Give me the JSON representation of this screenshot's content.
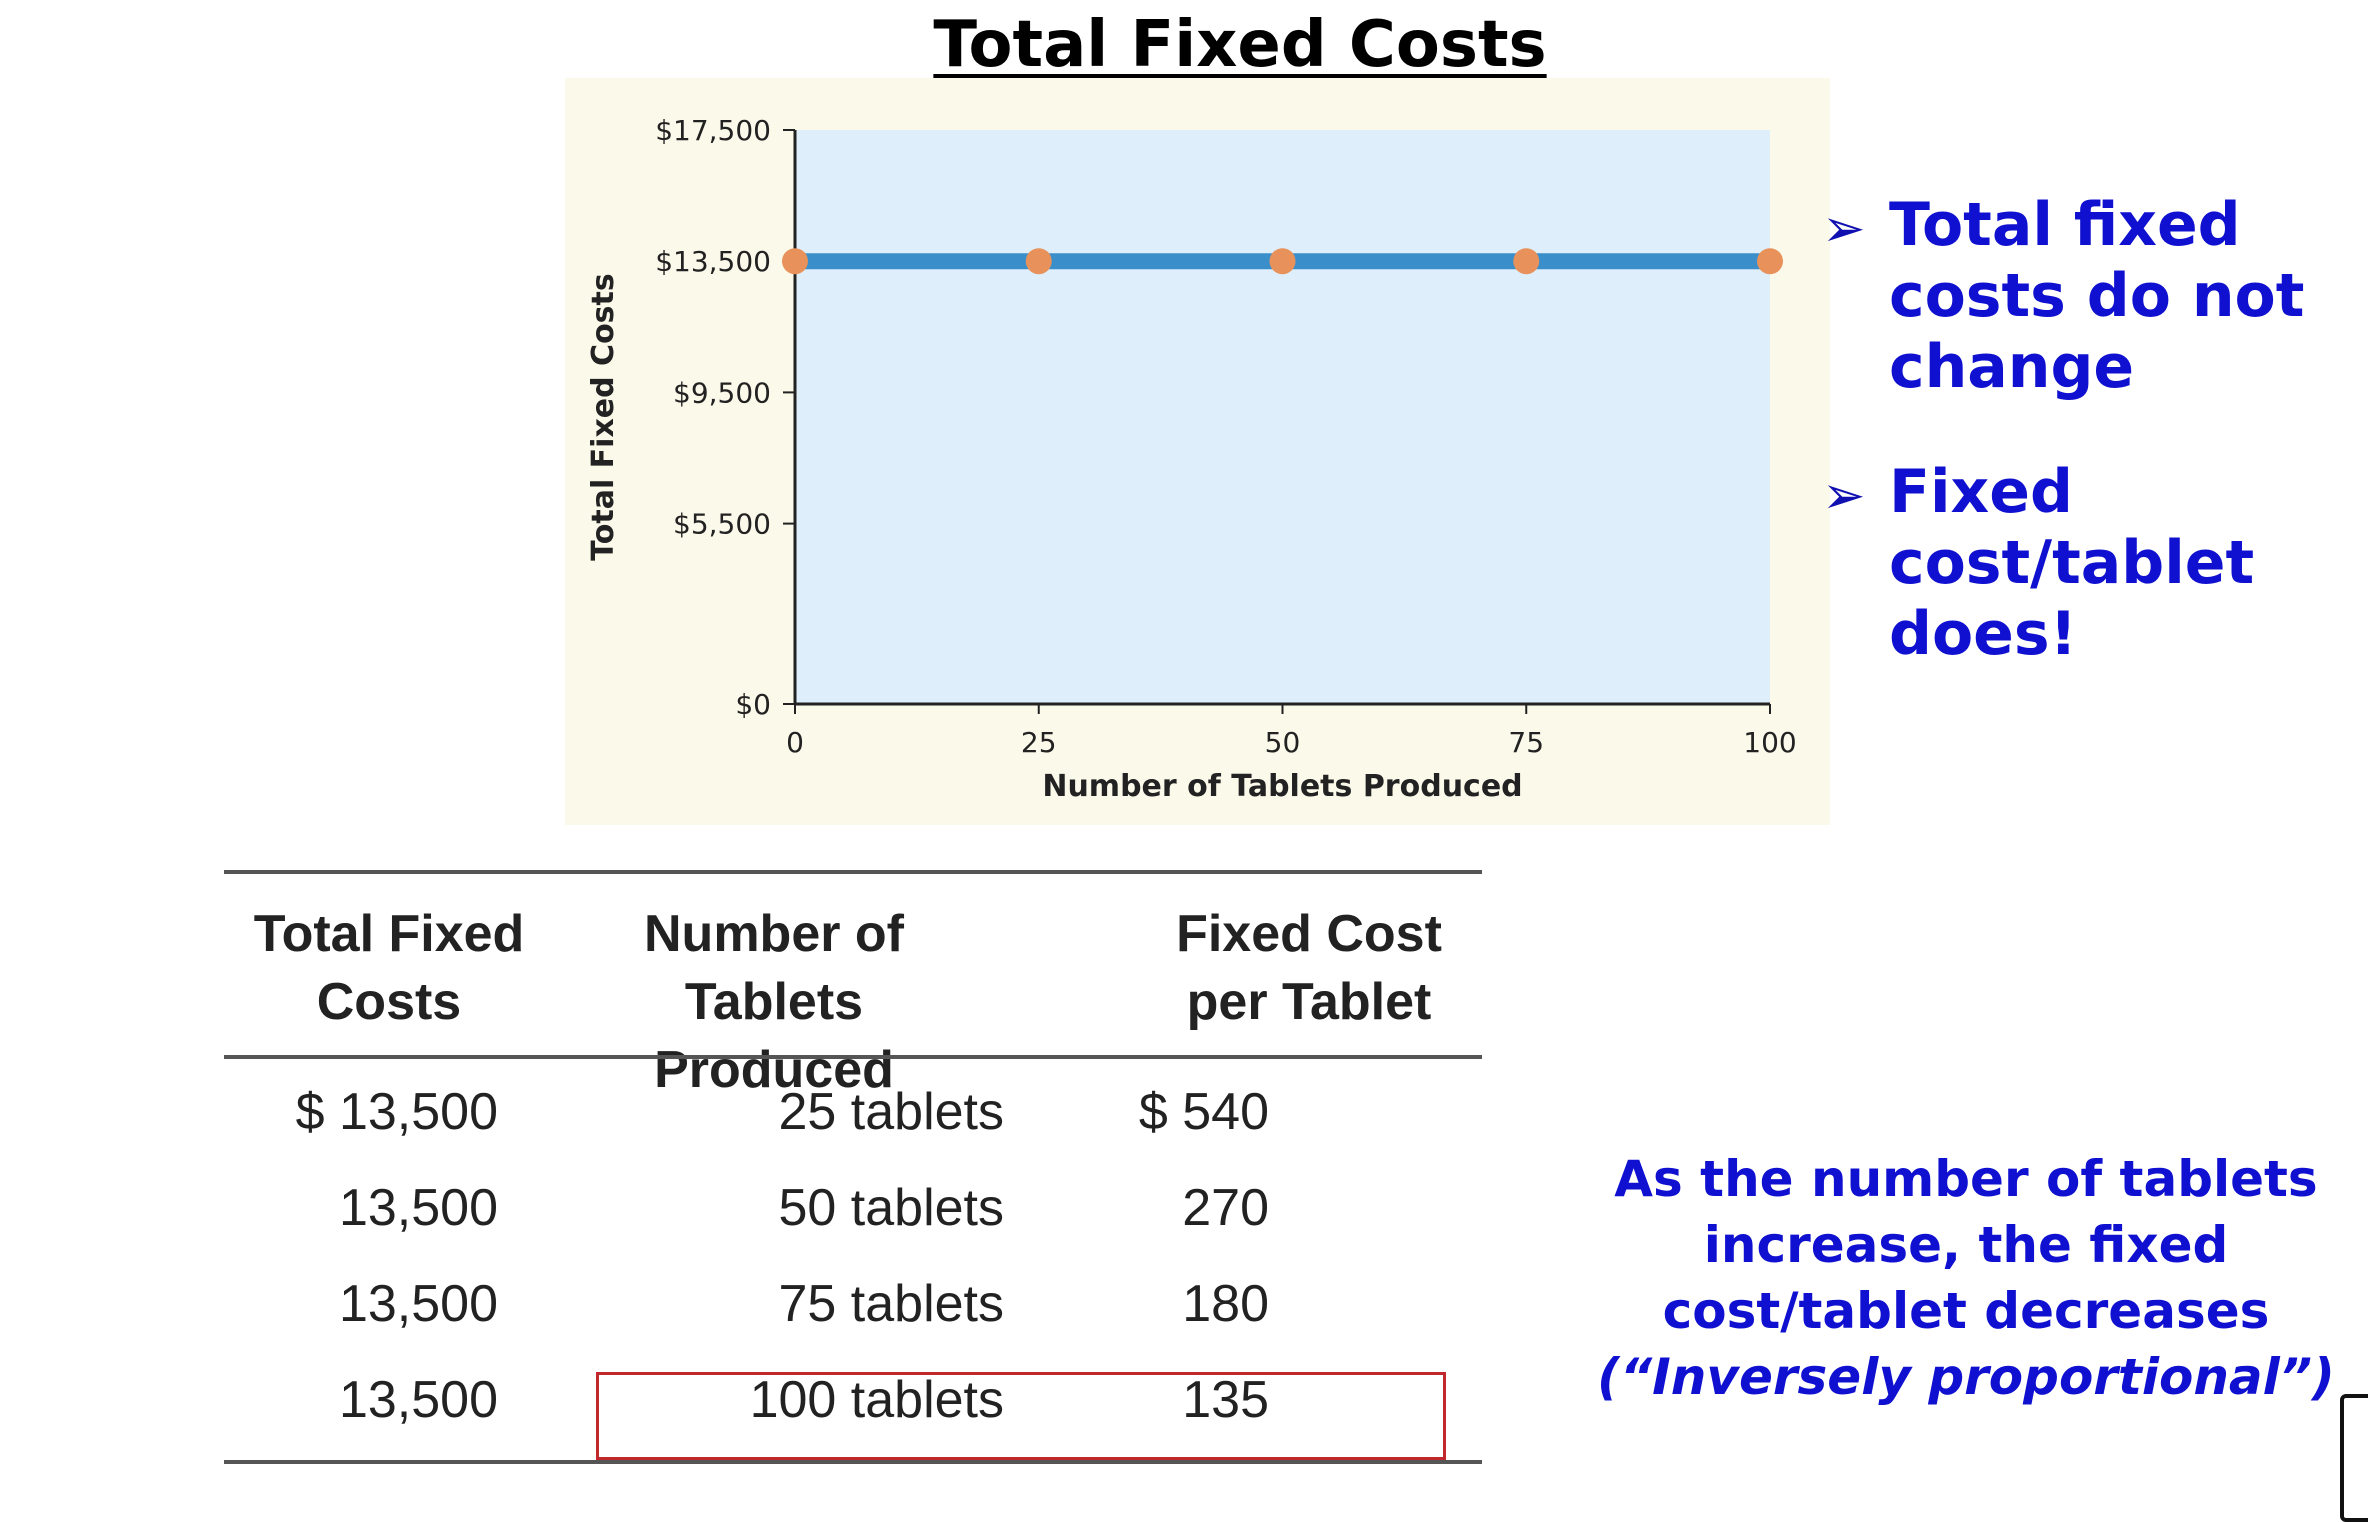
{
  "slide": {
    "title": "Total Fixed Costs"
  },
  "chart_data": {
    "type": "line",
    "title": "",
    "xlabel": "Number of Tablets Produced",
    "ylabel": "Total Fixed Costs",
    "x": [
      0,
      25,
      50,
      75,
      100
    ],
    "series": [
      {
        "values": [
          13500,
          13500,
          13500,
          13500,
          13500
        ]
      }
    ],
    "xlim": [
      0,
      100
    ],
    "ylim": [
      0,
      17500
    ],
    "x_ticks": [
      0,
      25,
      50,
      75,
      100
    ],
    "x_tick_labels": [
      "0",
      "25",
      "50",
      "75",
      "100"
    ],
    "y_ticks": [
      0,
      5500,
      9500,
      13500,
      17500
    ],
    "y_tick_labels": [
      "$0",
      "$5,500",
      "$9,500",
      "$13,500",
      "$17,500"
    ],
    "grid": false,
    "colors": {
      "panel_background": "#fbf9ea",
      "plot_background": "#deeefa",
      "line": "#3a8fcb",
      "marker": "#e8915a",
      "axis": "#222222"
    }
  },
  "bullets": [
    {
      "marker": "➢",
      "text": "Total fixed costs do not change"
    },
    {
      "marker": "➢",
      "text": "Fixed cost/tablet does!"
    }
  ],
  "table": {
    "headers": [
      "Total Fixed Costs",
      "Number of Tablets Produced",
      "Fixed Cost per Tablet"
    ],
    "rows": [
      [
        "$ 13,500",
        "25 tablets",
        "$ 540"
      ],
      [
        "13,500",
        "50 tablets",
        "270"
      ],
      [
        "13,500",
        "75 tablets",
        "180"
      ],
      [
        "13,500",
        "100 tablets",
        "135"
      ]
    ],
    "highlight_color": "#c0282d"
  },
  "note": {
    "line1": "As the number of tablets increase, the fixed cost/tablet decreases",
    "line2": "(“Inversely proportional”)"
  },
  "colors": {
    "accent_text": "#1010d0"
  }
}
